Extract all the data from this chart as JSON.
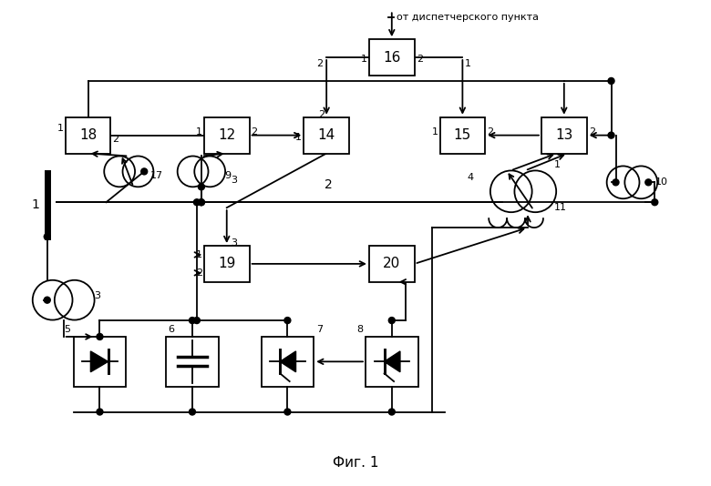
{
  "title": "Фиг. 1",
  "annotation": "от диспетчерского пункта",
  "bg_color": "#ffffff",
  "fig_w": 7.8,
  "fig_h": 5.34,
  "dpi": 100
}
